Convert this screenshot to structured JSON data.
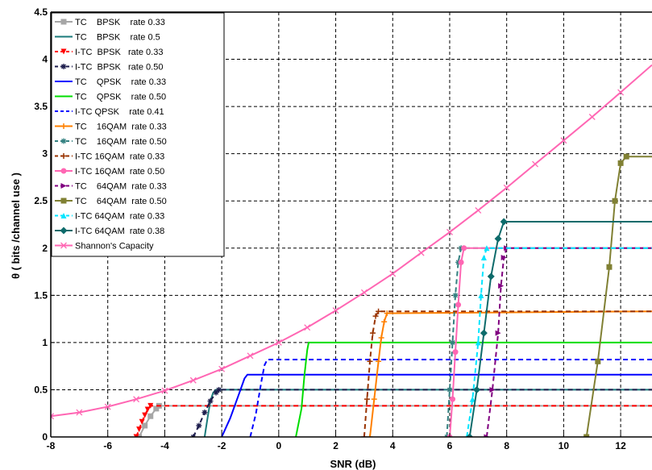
{
  "chart_data": {
    "type": "line",
    "xlabel": "SNR (dB)",
    "ylabel": "θ ( bits /channel use )",
    "xlim": [
      -8,
      13.1
    ],
    "ylim": [
      0,
      4.5
    ],
    "xticks": [
      -8,
      -6,
      -4,
      -2,
      0,
      2,
      4,
      6,
      8,
      10,
      12
    ],
    "xtick_labels": [
      "-8",
      "-6",
      "-4",
      "-2",
      "0",
      "2",
      "4",
      "6",
      "8",
      "10",
      "12"
    ],
    "yticks": [
      0,
      0.5,
      1,
      1.5,
      2,
      2.5,
      3,
      3.5,
      4,
      4.5
    ],
    "ytick_labels": [
      "0",
      "0.5",
      "1",
      "1.5",
      "2",
      "2.5",
      "3",
      "3.5",
      "4",
      "4.5"
    ],
    "grid": true,
    "legend_position": "top-left",
    "series": [
      {
        "name": "TC    BPSK    rate 0.33",
        "color": "#a6a6a6",
        "dash": "solid",
        "marker": "square",
        "x": [
          -4.9,
          -4.7,
          -4.5,
          -4.3,
          -4.2,
          13.1
        ],
        "y": [
          0,
          0.12,
          0.22,
          0.3,
          0.33,
          0.33
        ]
      },
      {
        "name": "TC    BPSK    rate 0.5",
        "color": "#1a7a7a",
        "dash": "solid",
        "marker": "none",
        "x": [
          -2.6,
          -2.5,
          -2.4,
          -2.3,
          -2.2,
          13.1
        ],
        "y": [
          0,
          0.2,
          0.38,
          0.47,
          0.5,
          0.5
        ]
      },
      {
        "name": "I-TC  BPSK   rate 0.33",
        "color": "#ff0000",
        "dash": "dashed",
        "marker": "triangle-down",
        "x": [
          -5.0,
          -4.9,
          -4.8,
          -4.7,
          -4.6,
          -4.5,
          13.1
        ],
        "y": [
          0,
          0.08,
          0.16,
          0.23,
          0.29,
          0.33,
          0.33
        ]
      },
      {
        "name": "I-TC  BPSK   rate 0.50",
        "color": "#1c1c4c",
        "dash": "dashed",
        "marker": "star",
        "x": [
          -3.0,
          -2.8,
          -2.6,
          -2.4,
          -2.2,
          -2.1,
          13.1
        ],
        "y": [
          0,
          0.12,
          0.26,
          0.38,
          0.47,
          0.5,
          0.5
        ]
      },
      {
        "name": "TC    QPSK    rate 0.33",
        "color": "#0000ff",
        "dash": "solid",
        "marker": "none",
        "x": [
          -2.0,
          -1.7,
          -1.4,
          -1.2,
          -1.1,
          13.1
        ],
        "y": [
          0,
          0.2,
          0.45,
          0.62,
          0.66,
          0.66
        ]
      },
      {
        "name": "TC    QPSK    rate 0.50",
        "color": "#00dd00",
        "dash": "solid",
        "marker": "none",
        "x": [
          0.6,
          0.8,
          0.9,
          1.0,
          1.05,
          13.1
        ],
        "y": [
          0,
          0.3,
          0.65,
          0.92,
          1.0,
          1.0
        ]
      },
      {
        "name": "I-TC QPSK    rate 0.41",
        "color": "#0000ff",
        "dash": "dashed",
        "marker": "none",
        "x": [
          -1.0,
          -0.8,
          -0.6,
          -0.5,
          -0.4,
          13.1
        ],
        "y": [
          0,
          0.25,
          0.6,
          0.76,
          0.82,
          0.82
        ]
      },
      {
        "name": "TC    16QAM  rate 0.33",
        "color": "#ff8000",
        "dash": "solid",
        "marker": "plus",
        "x": [
          3.2,
          3.35,
          3.5,
          3.6,
          3.7,
          3.8,
          13.1
        ],
        "y": [
          0,
          0.4,
          0.8,
          1.05,
          1.22,
          1.31,
          1.33
        ]
      },
      {
        "name": "TC    16QAM  rate 0.50",
        "color": "#338080",
        "dash": "dashed",
        "marker": "star",
        "x": [
          5.9,
          6.0,
          6.1,
          6.2,
          6.3,
          6.4,
          13.1
        ],
        "y": [
          0,
          0.5,
          1.0,
          1.5,
          1.85,
          2.0,
          2.0
        ]
      },
      {
        "name": "I-TC 16QAM  rate 0.33",
        "color": "#993300",
        "dash": "dashed",
        "marker": "plus",
        "x": [
          3.0,
          3.1,
          3.2,
          3.3,
          3.4,
          3.5,
          13.1
        ],
        "y": [
          0,
          0.4,
          0.8,
          1.1,
          1.28,
          1.33,
          1.33
        ]
      },
      {
        "name": "I-TC 16QAM  rate 0.50",
        "color": "#ff66b3",
        "dash": "solid",
        "marker": "circle",
        "x": [
          6.0,
          6.1,
          6.2,
          6.3,
          6.4,
          6.5,
          13.1
        ],
        "y": [
          0,
          0.4,
          0.9,
          1.4,
          1.85,
          2.0,
          2.0
        ]
      },
      {
        "name": "TC    64QAM  rate 0.33",
        "color": "#800080",
        "dash": "dashed",
        "marker": "triangle-right",
        "x": [
          7.3,
          7.5,
          7.7,
          7.8,
          7.9,
          8.0,
          13.1
        ],
        "y": [
          0,
          0.5,
          1.1,
          1.6,
          1.9,
          2.0,
          2.0
        ]
      },
      {
        "name": "TC    64QAM  rate 0.50",
        "color": "#808033",
        "dash": "solid",
        "marker": "square",
        "x": [
          10.8,
          11.2,
          11.6,
          11.8,
          12.0,
          12.2,
          13.1
        ],
        "y": [
          0,
          0.8,
          1.8,
          2.5,
          2.9,
          2.97,
          2.97
        ]
      },
      {
        "name": "I-TC 64QAM  rate 0.33",
        "color": "#00e5ff",
        "dash": "dashed",
        "marker": "triangle-up",
        "x": [
          6.6,
          6.8,
          7.0,
          7.1,
          7.2,
          7.3,
          13.1
        ],
        "y": [
          0,
          0.4,
          1.0,
          1.5,
          1.9,
          2.0,
          2.0
        ]
      },
      {
        "name": "I-TC 64QAM  rate 0.38",
        "color": "#0d6b6b",
        "dash": "solid",
        "marker": "diamond",
        "x": [
          6.7,
          6.95,
          7.2,
          7.45,
          7.7,
          7.9,
          13.1
        ],
        "y": [
          0,
          0.5,
          1.1,
          1.7,
          2.1,
          2.28,
          2.28
        ]
      },
      {
        "name": "Shannon's Capacity",
        "color": "#ff66b3",
        "dash": "solid",
        "marker": "x",
        "x": [
          -8,
          -7,
          -6,
          -5,
          -4,
          -3,
          -2,
          -1,
          0,
          1,
          2,
          3,
          4,
          5,
          6,
          7,
          8,
          9,
          10,
          11,
          12,
          13.1
        ],
        "y": [
          0.22,
          0.26,
          0.32,
          0.4,
          0.49,
          0.6,
          0.72,
          0.86,
          1.0,
          1.16,
          1.34,
          1.53,
          1.73,
          1.95,
          2.17,
          2.4,
          2.64,
          2.89,
          3.14,
          3.39,
          3.65,
          3.94
        ]
      }
    ]
  }
}
